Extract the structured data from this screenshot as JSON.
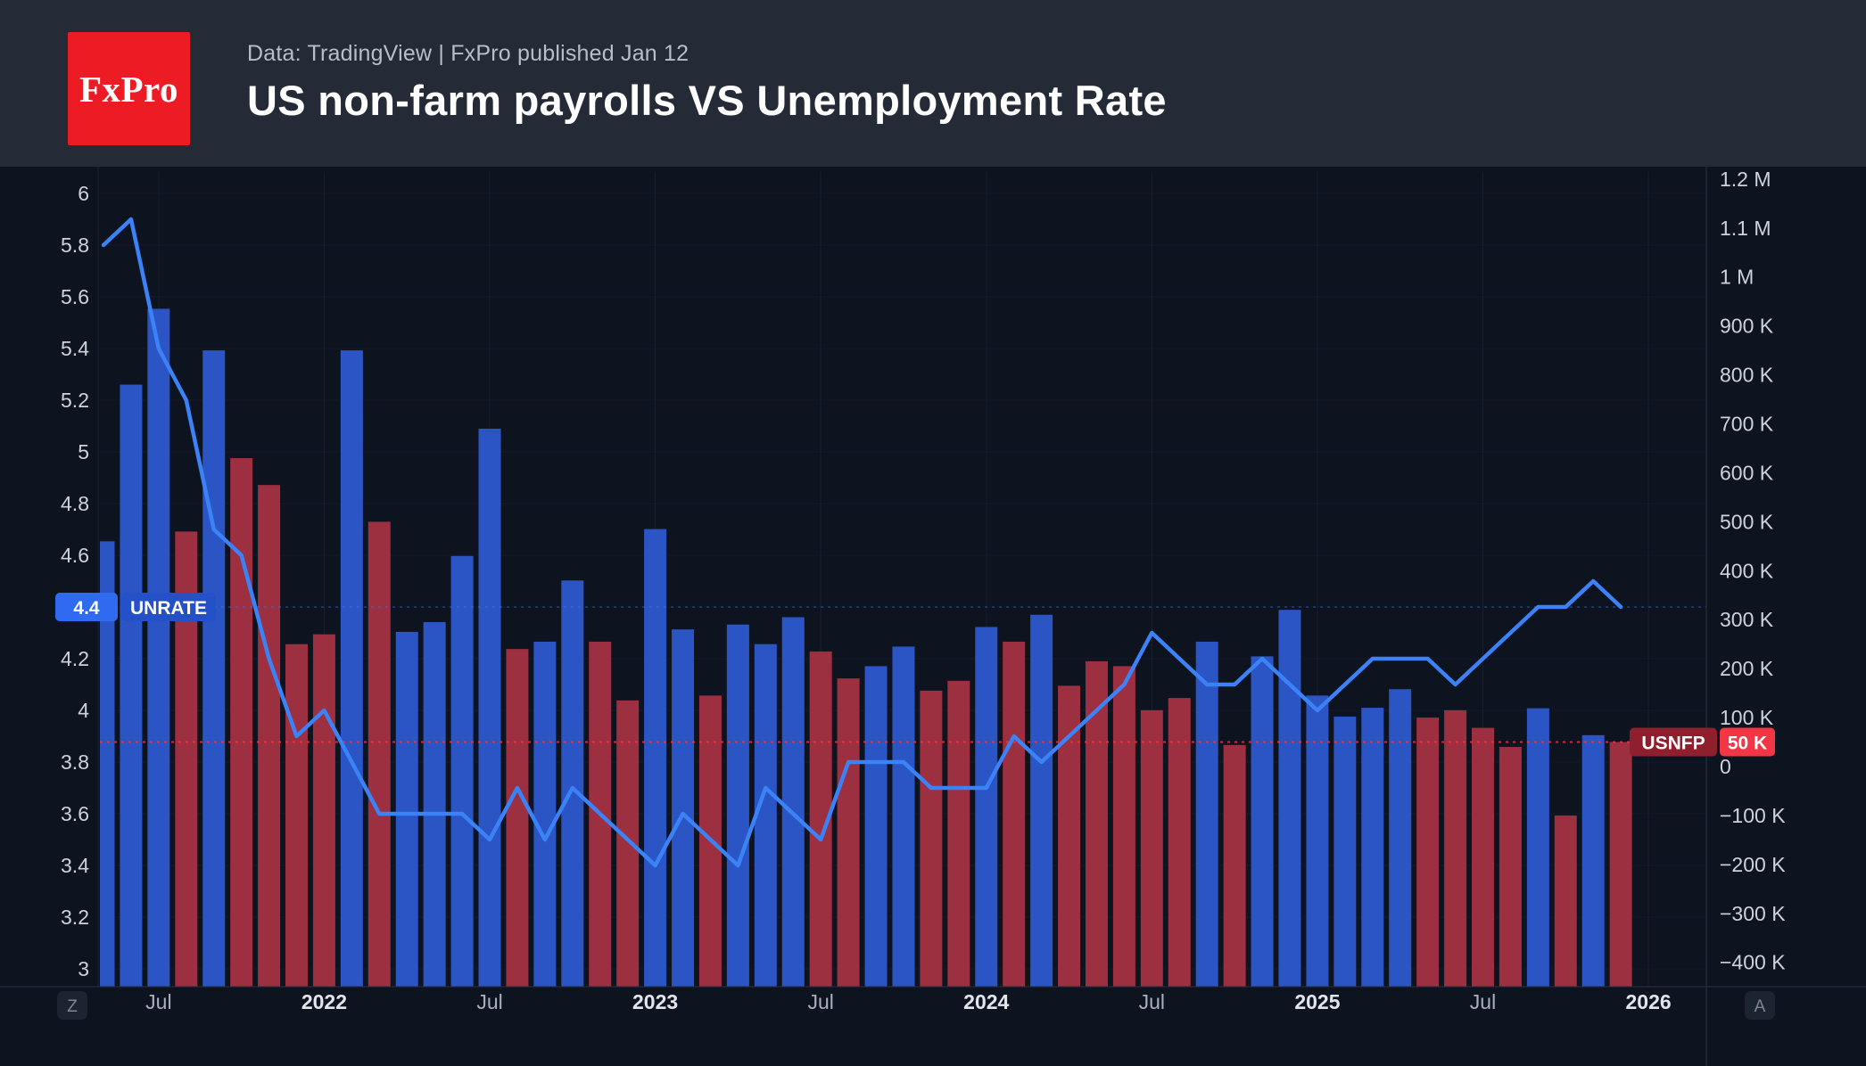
{
  "header": {
    "logo_text": "FxPro",
    "source_line": "Data: TradingView | FxPro published Jan 12",
    "title": "US non-farm payrolls VS Unemployment Rate"
  },
  "colors": {
    "page_bg": "#0e1320",
    "header_bg": "#242a36",
    "bar_blue": "#2b55c4",
    "bar_red": "#9c2f40",
    "line_blue": "#3b82f7",
    "accent_red": "#f23645",
    "label_blue_value": "#2f6bf0",
    "label_blue_name": "#2450c8",
    "label_red_name": "#8f1f2c",
    "axis_text": "#cdd2dd",
    "axis_month_text": "#a9b0bd",
    "axis_year_text": "#e2e5eb",
    "separator": "#2a3041",
    "grid_h": "rgba(151,166,197,0.055)",
    "grid_v": "rgba(151,166,197,0.08)",
    "badge_bg": "#1d2431",
    "badge_text": "#7f8795"
  },
  "series_labels": {
    "unrate": {
      "value": "4.4",
      "name": "UNRATE"
    },
    "usnfp": {
      "name": "USNFP",
      "value": "50 K"
    }
  },
  "badges": {
    "bottom_left": "Z",
    "bottom_right": "A"
  },
  "chart_data": {
    "type": "bar",
    "title": "US non-farm payrolls VS Unemployment Rate",
    "x": [
      "May 2021",
      "Jun 2021",
      "Jul 2021",
      "Aug 2021",
      "Sep 2021",
      "Oct 2021",
      "Nov 2021",
      "Dec 2021",
      "Jan 2022",
      "Feb 2022",
      "Mar 2022",
      "Apr 2022",
      "May 2022",
      "Jun 2022",
      "Jul 2022",
      "Aug 2022",
      "Sep 2022",
      "Oct 2022",
      "Nov 2022",
      "Dec 2022",
      "Jan 2023",
      "Feb 2023",
      "Mar 2023",
      "Apr 2023",
      "May 2023",
      "Jun 2023",
      "Jul 2023",
      "Aug 2023",
      "Sep 2023",
      "Oct 2023",
      "Nov 2023",
      "Dec 2023",
      "Jan 2024",
      "Feb 2024",
      "Mar 2024",
      "Apr 2024",
      "May 2024",
      "Jun 2024",
      "Jul 2024",
      "Aug 2024",
      "Sep 2024",
      "Oct 2024",
      "Nov 2024",
      "Dec 2024",
      "Jan 2025",
      "Feb 2025",
      "Mar 2025",
      "Apr 2025",
      "May 2025",
      "Jun 2025",
      "Jul 2025",
      "Aug 2025",
      "Sep 2025",
      "Oct 2025",
      "Nov 2025",
      "Dec 2025"
    ],
    "series": [
      {
        "name": "USNFP",
        "type": "bar",
        "axis": "right",
        "units": "thousands of jobs",
        "values_thousands": [
          460,
          780,
          935,
          480,
          850,
          630,
          575,
          250,
          270,
          850,
          500,
          275,
          295,
          430,
          690,
          240,
          255,
          380,
          255,
          135,
          485,
          280,
          145,
          290,
          250,
          305,
          235,
          180,
          205,
          245,
          155,
          175,
          285,
          255,
          310,
          165,
          215,
          205,
          115,
          140,
          255,
          44,
          225,
          320,
          145,
          102,
          120,
          158,
          100,
          115,
          79,
          40,
          119,
          -100,
          64,
          50
        ],
        "bar_colors": [
          "blue",
          "blue",
          "blue",
          "red",
          "blue",
          "red",
          "red",
          "red",
          "red",
          "blue",
          "red",
          "blue",
          "blue",
          "blue",
          "blue",
          "red",
          "blue",
          "blue",
          "red",
          "red",
          "blue",
          "blue",
          "red",
          "blue",
          "blue",
          "blue",
          "red",
          "red",
          "blue",
          "blue",
          "red",
          "red",
          "blue",
          "red",
          "blue",
          "red",
          "red",
          "red",
          "red",
          "red",
          "blue",
          "red",
          "blue",
          "blue",
          "blue",
          "blue",
          "blue",
          "blue",
          "red",
          "red",
          "red",
          "red",
          "blue",
          "red",
          "blue",
          "red"
        ]
      },
      {
        "name": "UNRATE",
        "type": "line",
        "axis": "left",
        "units": "%",
        "values_percent": [
          5.8,
          5.9,
          5.4,
          5.2,
          4.7,
          4.6,
          4.2,
          3.9,
          4.0,
          3.8,
          3.6,
          3.6,
          3.6,
          3.6,
          3.5,
          3.7,
          3.5,
          3.7,
          3.6,
          3.5,
          3.4,
          3.6,
          3.5,
          3.4,
          3.7,
          3.6,
          3.5,
          3.8,
          3.8,
          3.8,
          3.7,
          3.7,
          3.7,
          3.9,
          3.8,
          3.9,
          4.0,
          4.1,
          4.3,
          4.2,
          4.1,
          4.1,
          4.2,
          4.1,
          4.0,
          4.1,
          4.2,
          4.2,
          4.2,
          4.1,
          4.2,
          4.3,
          4.4,
          4.4,
          4.5,
          4.4
        ]
      }
    ],
    "left_axis": {
      "min": 3,
      "max": 6,
      "tick_step": 0.2,
      "ticks": [
        {
          "v": 6,
          "label": "6"
        },
        {
          "v": 5.8,
          "label": "5.8"
        },
        {
          "v": 5.6,
          "label": "5.6"
        },
        {
          "v": 5.4,
          "label": "5.4"
        },
        {
          "v": 5.2,
          "label": "5.2"
        },
        {
          "v": 5,
          "label": "5"
        },
        {
          "v": 4.8,
          "label": "4.8"
        },
        {
          "v": 4.6,
          "label": "4.6"
        },
        {
          "v": 4.4,
          "label": "4.4"
        },
        {
          "v": 4.2,
          "label": "4.2"
        },
        {
          "v": 4,
          "label": "4"
        },
        {
          "v": 3.8,
          "label": "3.8"
        },
        {
          "v": 3.6,
          "label": "3.6"
        },
        {
          "v": 3.4,
          "label": "3.4"
        },
        {
          "v": 3.2,
          "label": "3.2"
        },
        {
          "v": 3,
          "label": "3"
        }
      ]
    },
    "right_axis": {
      "min_k": -400,
      "max_k": 1200,
      "ticks": [
        {
          "v_k": 1200,
          "label": "1.2 M"
        },
        {
          "v_k": 1100,
          "label": "1.1 M"
        },
        {
          "v_k": 1000,
          "label": "1 M"
        },
        {
          "v_k": 900,
          "label": "900 K"
        },
        {
          "v_k": 800,
          "label": "800 K"
        },
        {
          "v_k": 700,
          "label": "700 K"
        },
        {
          "v_k": 600,
          "label": "600 K"
        },
        {
          "v_k": 500,
          "label": "500 K"
        },
        {
          "v_k": 400,
          "label": "400 K"
        },
        {
          "v_k": 300,
          "label": "300 K"
        },
        {
          "v_k": 200,
          "label": "200 K"
        },
        {
          "v_k": 100,
          "label": "100 K"
        },
        {
          "v_k": 0,
          "label": "0"
        },
        {
          "v_k": -100,
          "label": "−100 K"
        },
        {
          "v_k": -200,
          "label": "−200 K"
        },
        {
          "v_k": -300,
          "label": "−300 K"
        },
        {
          "v_k": -400,
          "label": "−400 K"
        }
      ]
    },
    "x_ticks": [
      {
        "i": 2,
        "label": "Jul",
        "year": false
      },
      {
        "i": 8,
        "label": "2022",
        "year": true
      },
      {
        "i": 14,
        "label": "Jul",
        "year": false
      },
      {
        "i": 20,
        "label": "2023",
        "year": true
      },
      {
        "i": 26,
        "label": "Jul",
        "year": false
      },
      {
        "i": 32,
        "label": "2024",
        "year": true
      },
      {
        "i": 38,
        "label": "Jul",
        "year": false
      },
      {
        "i": 44,
        "label": "2025",
        "year": true
      },
      {
        "i": 50,
        "label": "Jul",
        "year": false
      },
      {
        "i": 56,
        "label": "2026",
        "year": true
      }
    ],
    "last_values": {
      "unrate_percent": 4.4,
      "usnfp_thousands": 50
    },
    "legend_position": "on-chart price labels",
    "grid": true
  }
}
